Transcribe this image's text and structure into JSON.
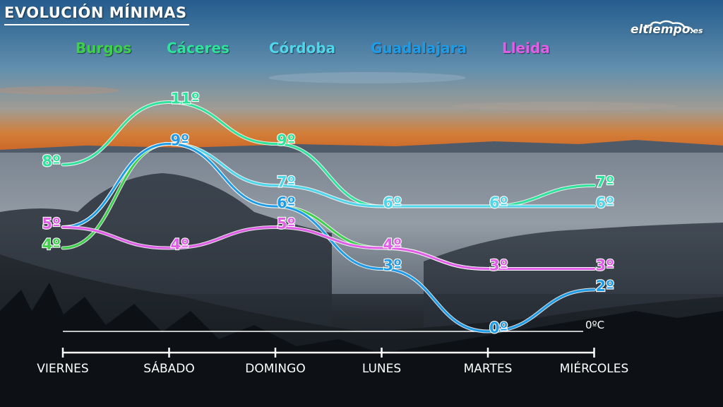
{
  "title": "EVOLUCIÓN MÍNIMAS",
  "logo": {
    "name": "eltiempo",
    "suffix": ".es"
  },
  "chart_data": {
    "type": "line",
    "title": "EVOLUCIÓN MÍNIMAS",
    "unit": "º",
    "baseline_label": "0ºC",
    "categories": [
      "VIERNES",
      "SÁBADO",
      "DOMINGO",
      "LUNES",
      "MARTES",
      "MIÉRCOLES"
    ],
    "series": [
      {
        "name": "Burgos",
        "color": "#3ed04a",
        "values": [
          4,
          9,
          6,
          4,
          3,
          3
        ]
      },
      {
        "name": "Cáceres",
        "color": "#2ee39a",
        "values": [
          8,
          11,
          9,
          6,
          6,
          7
        ]
      },
      {
        "name": "Córdoba",
        "color": "#4fd6ea",
        "values": [
          5,
          9,
          7,
          6,
          6,
          6
        ]
      },
      {
        "name": "Guadalajara",
        "color": "#1e9ce8",
        "values": [
          5,
          9,
          6,
          3,
          0,
          2
        ]
      },
      {
        "name": "Lleida",
        "color": "#e25ee8",
        "values": [
          5,
          4,
          5,
          4,
          3,
          3
        ]
      }
    ],
    "labels": [
      {
        "series": 1,
        "index": 0,
        "text": "8º"
      },
      {
        "series": 1,
        "index": 1,
        "text": "11º"
      },
      {
        "series": 1,
        "index": 2,
        "text": "9º"
      },
      {
        "series": 1,
        "index": 5,
        "text": "7º"
      },
      {
        "series": 0,
        "index": 0,
        "text": "4º"
      },
      {
        "series": 4,
        "index": 0,
        "text": "5º"
      },
      {
        "series": 4,
        "index": 1,
        "text": "4º"
      },
      {
        "series": 4,
        "index": 2,
        "text": "5º"
      },
      {
        "series": 4,
        "index": 3,
        "text": "4º"
      },
      {
        "series": 4,
        "index": 4,
        "text": "3º"
      },
      {
        "series": 4,
        "index": 5,
        "text": "3º"
      },
      {
        "series": 3,
        "index": 1,
        "text": "9º"
      },
      {
        "series": 3,
        "index": 2,
        "text": "6º"
      },
      {
        "series": 3,
        "index": 3,
        "text": "3º"
      },
      {
        "series": 3,
        "index": 4,
        "text": "0º"
      },
      {
        "series": 3,
        "index": 5,
        "text": "2º"
      },
      {
        "series": 2,
        "index": 2,
        "text": "7º"
      },
      {
        "series": 2,
        "index": 3,
        "text": "6º"
      },
      {
        "series": 2,
        "index": 4,
        "text": "6º"
      },
      {
        "series": 2,
        "index": 5,
        "text": "6º"
      }
    ],
    "ylim": [
      0,
      11
    ],
    "grid": false,
    "legend_position": "top"
  }
}
